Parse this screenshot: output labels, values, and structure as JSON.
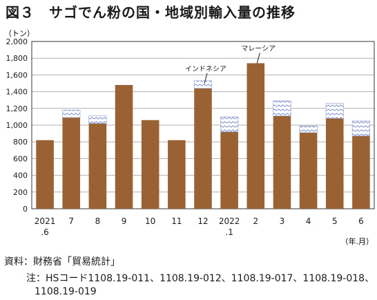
{
  "title": "図３　サゴでん粉の国・地域別輸入量の推移",
  "source_note": "資料：財務省「貿易統計」",
  "footnote_line1": "注：HSコード1108.19-011、1108.19-012、1108.19-017、1108.19-018、",
  "footnote_line2": "1108.19-019",
  "chart_data": {
    "type": "bar",
    "stacked": true,
    "y_unit_label": "（トン）",
    "x_unit_label": "（年.月）",
    "ylim": [
      0,
      2000
    ],
    "y_ticks": [
      "0",
      "200",
      "400",
      "600",
      "800",
      "1,000",
      "1,200",
      "1,400",
      "1,600",
      "1,800",
      "2,000"
    ],
    "y_tick_values": [
      0,
      200,
      400,
      600,
      800,
      1000,
      1200,
      1400,
      1600,
      1800,
      2000
    ],
    "grid": true,
    "categories": [
      [
        "2021",
        ".6"
      ],
      [
        "7"
      ],
      [
        "8"
      ],
      [
        "9"
      ],
      [
        "10"
      ],
      [
        "11"
      ],
      [
        "12"
      ],
      [
        "2022",
        ".1"
      ],
      [
        "2"
      ],
      [
        "3"
      ],
      [
        "4"
      ],
      [
        "5"
      ],
      [
        "6"
      ]
    ],
    "series": [
      {
        "name": "マレーシア",
        "color": "#9a6132",
        "values": [
          820,
          1090,
          1020,
          1480,
          1060,
          820,
          1440,
          920,
          1740,
          1110,
          910,
          1080,
          870
        ]
      },
      {
        "name": "インドネシア",
        "color": "#8a9ad0",
        "values": [
          0,
          90,
          90,
          0,
          0,
          0,
          90,
          180,
          0,
          180,
          80,
          180,
          180
        ]
      }
    ],
    "annotations": [
      {
        "text": "インドネシア",
        "category_index": 6,
        "series": "インドネシア"
      },
      {
        "text": "マレーシア",
        "category_index": 8,
        "series": "マレーシア"
      }
    ]
  }
}
